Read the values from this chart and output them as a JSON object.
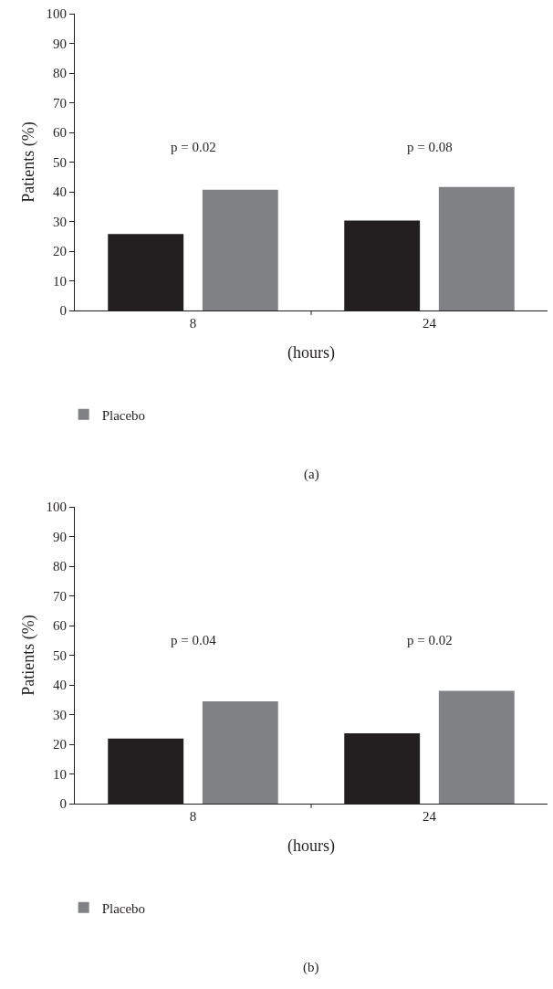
{
  "chart_data": [
    {
      "type": "bar",
      "categories": [
        "8",
        "24"
      ],
      "xlabel": "(hours)",
      "ylabel": "Patients (%)",
      "ylim": [
        0,
        100
      ],
      "yticks": [
        0,
        10,
        20,
        30,
        40,
        50,
        60,
        70,
        80,
        90,
        100
      ],
      "grid": false,
      "legend": "bottom left",
      "series": [
        {
          "color": "#231f20",
          "values": [
            25.8,
            30.3
          ]
        },
        {
          "name": "Placebo",
          "color": "#808184",
          "values": [
            40.7,
            41.6
          ]
        }
      ],
      "annotations": [
        "p = 0.02",
        "p = 0.08",
        "(a)"
      ]
    },
    {
      "type": "bar",
      "categories": [
        "8",
        "24"
      ],
      "xlabel": "(hours)",
      "ylabel": "Patients (%)",
      "ylim": [
        0,
        100
      ],
      "yticks": [
        0,
        10,
        20,
        30,
        40,
        50,
        60,
        70,
        80,
        90,
        100
      ],
      "grid": false,
      "legend": "bottom left",
      "series": [
        {
          "color": "#231f20",
          "values": [
            21.9,
            23.7
          ]
        },
        {
          "name": "Placebo",
          "color": "#808184",
          "values": [
            34.5,
            38.0
          ]
        }
      ],
      "annotations": [
        "p = 0.04",
        "p = 0.02",
        "(b)"
      ]
    }
  ]
}
